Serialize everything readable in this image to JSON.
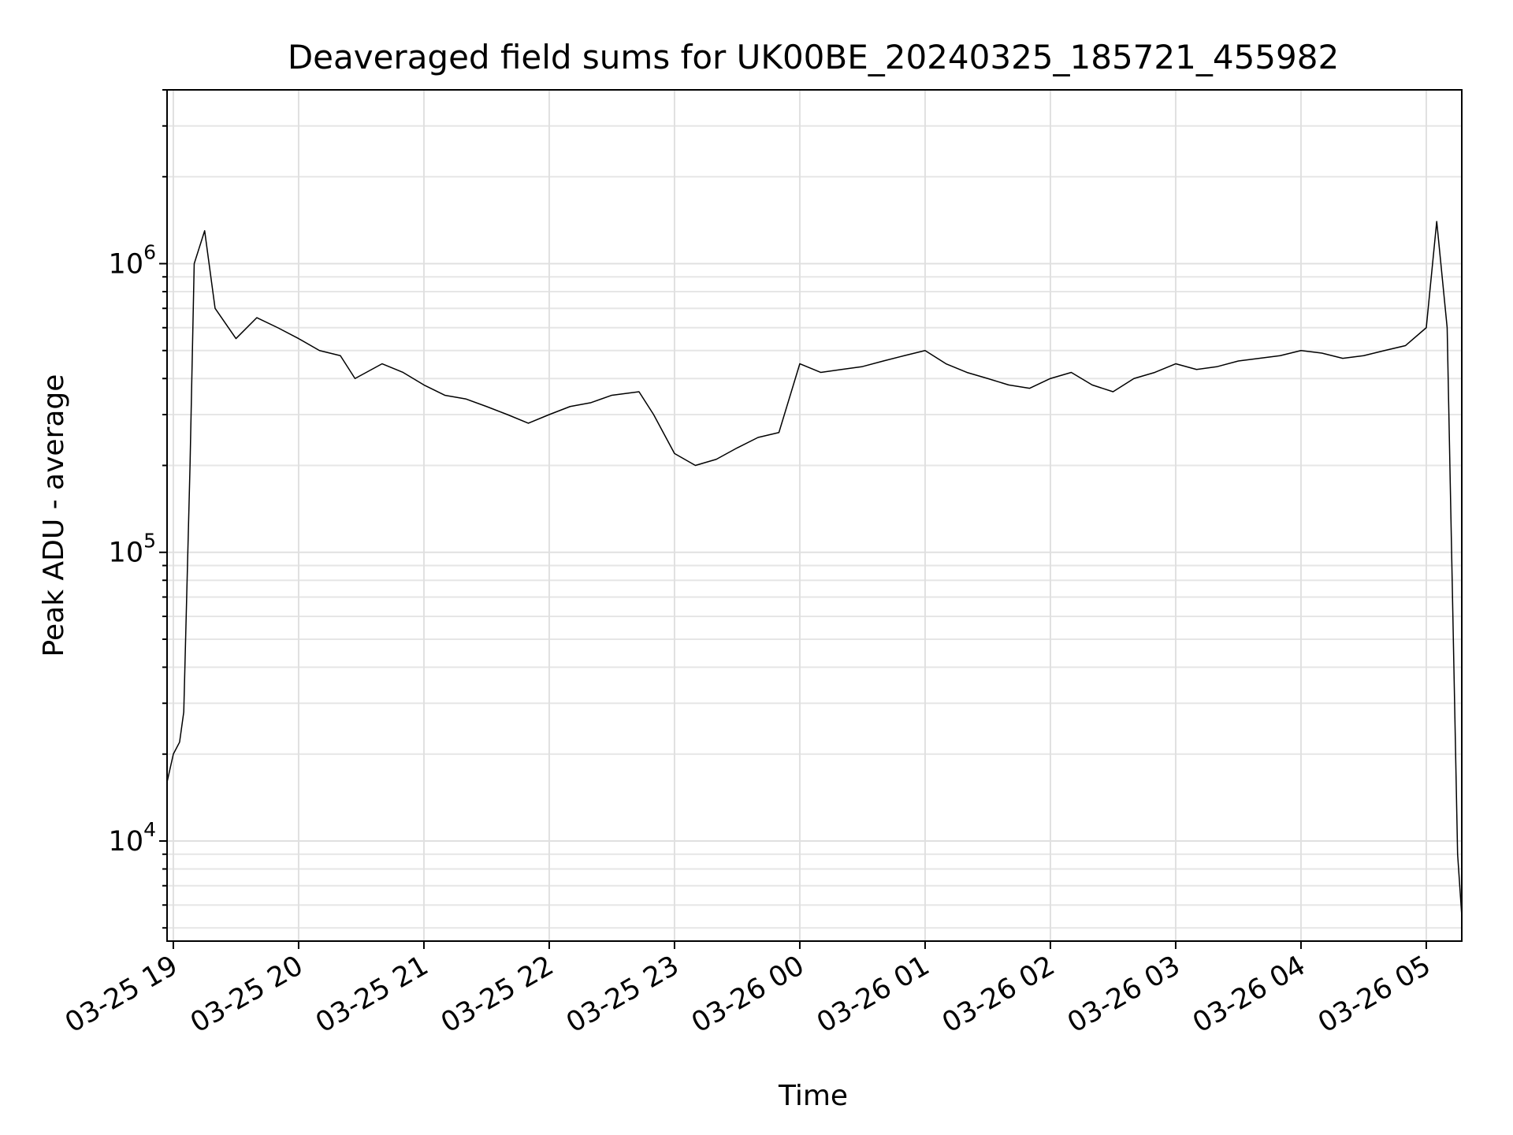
{
  "chart_data": {
    "type": "line",
    "title": "Deaveraged field sums for UK00BE_20240325_185721_455982",
    "xlabel": "Time",
    "ylabel": "Peak ADU - average",
    "yscale": "log",
    "ylim": [
      4500,
      4000000
    ],
    "xlim": [
      "2024-03-25 18:57",
      "2024-03-26 05:17"
    ],
    "grid": true,
    "legend": "none",
    "line_color": "#000000",
    "x_ticks": [
      {
        "value": "2024-03-25 19:00",
        "label": "03-25 19"
      },
      {
        "value": "2024-03-25 20:00",
        "label": "03-25 20"
      },
      {
        "value": "2024-03-25 21:00",
        "label": "03-25 21"
      },
      {
        "value": "2024-03-25 22:00",
        "label": "03-25 22"
      },
      {
        "value": "2024-03-25 23:00",
        "label": "03-25 23"
      },
      {
        "value": "2024-03-26 00:00",
        "label": "03-26 00"
      },
      {
        "value": "2024-03-26 01:00",
        "label": "03-26 01"
      },
      {
        "value": "2024-03-26 02:00",
        "label": "03-26 02"
      },
      {
        "value": "2024-03-26 03:00",
        "label": "03-26 03"
      },
      {
        "value": "2024-03-26 04:00",
        "label": "03-26 04"
      },
      {
        "value": "2024-03-26 05:00",
        "label": "03-26 05"
      }
    ],
    "y_ticks": [
      {
        "value": 10000,
        "base": "10",
        "exp": "4"
      },
      {
        "value": 100000,
        "base": "10",
        "exp": "5"
      },
      {
        "value": 1000000,
        "base": "10",
        "exp": "6"
      }
    ],
    "series": [
      {
        "x": [
          "2024-03-25 18:57",
          "2024-03-25 19:00",
          "2024-03-25 19:03",
          "2024-03-25 19:05",
          "2024-03-25 19:08",
          "2024-03-25 19:10",
          "2024-03-25 19:15",
          "2024-03-25 19:20",
          "2024-03-25 19:30",
          "2024-03-25 19:40",
          "2024-03-25 19:50",
          "2024-03-25 20:00",
          "2024-03-25 20:10",
          "2024-03-25 20:20",
          "2024-03-25 20:27",
          "2024-03-25 20:40",
          "2024-03-25 20:50",
          "2024-03-25 21:00",
          "2024-03-25 21:10",
          "2024-03-25 21:20",
          "2024-03-25 21:30",
          "2024-03-25 21:40",
          "2024-03-25 21:50",
          "2024-03-25 22:00",
          "2024-03-25 22:10",
          "2024-03-25 22:20",
          "2024-03-25 22:30",
          "2024-03-25 22:43",
          "2024-03-25 22:50",
          "2024-03-25 23:00",
          "2024-03-25 23:10",
          "2024-03-25 23:20",
          "2024-03-25 23:30",
          "2024-03-25 23:40",
          "2024-03-25 23:50",
          "2024-03-26 00:00",
          "2024-03-26 00:10",
          "2024-03-26 00:20",
          "2024-03-26 00:30",
          "2024-03-26 00:40",
          "2024-03-26 00:50",
          "2024-03-26 01:00",
          "2024-03-26 01:10",
          "2024-03-26 01:20",
          "2024-03-26 01:30",
          "2024-03-26 01:40",
          "2024-03-26 01:50",
          "2024-03-26 02:00",
          "2024-03-26 02:10",
          "2024-03-26 02:20",
          "2024-03-26 02:30",
          "2024-03-26 02:40",
          "2024-03-26 02:50",
          "2024-03-26 03:00",
          "2024-03-26 03:10",
          "2024-03-26 03:20",
          "2024-03-26 03:30",
          "2024-03-26 03:40",
          "2024-03-26 03:50",
          "2024-03-26 04:00",
          "2024-03-26 04:10",
          "2024-03-26 04:20",
          "2024-03-26 04:30",
          "2024-03-26 04:40",
          "2024-03-26 04:50",
          "2024-03-26 05:00",
          "2024-03-26 05:05",
          "2024-03-26 05:10",
          "2024-03-26 05:15",
          "2024-03-26 05:17"
        ],
        "y": [
          16000,
          20000,
          22000,
          28000,
          200000,
          1000000,
          1300000,
          700000,
          550000,
          650000,
          600000,
          550000,
          500000,
          480000,
          400000,
          450000,
          420000,
          380000,
          350000,
          340000,
          320000,
          300000,
          280000,
          300000,
          320000,
          330000,
          350000,
          360000,
          300000,
          220000,
          200000,
          210000,
          230000,
          250000,
          260000,
          450000,
          420000,
          430000,
          440000,
          460000,
          480000,
          500000,
          450000,
          420000,
          400000,
          380000,
          370000,
          400000,
          420000,
          380000,
          360000,
          400000,
          420000,
          450000,
          430000,
          440000,
          460000,
          470000,
          480000,
          500000,
          490000,
          470000,
          480000,
          500000,
          520000,
          600000,
          1400000,
          600000,
          9000,
          5500
        ]
      }
    ]
  }
}
